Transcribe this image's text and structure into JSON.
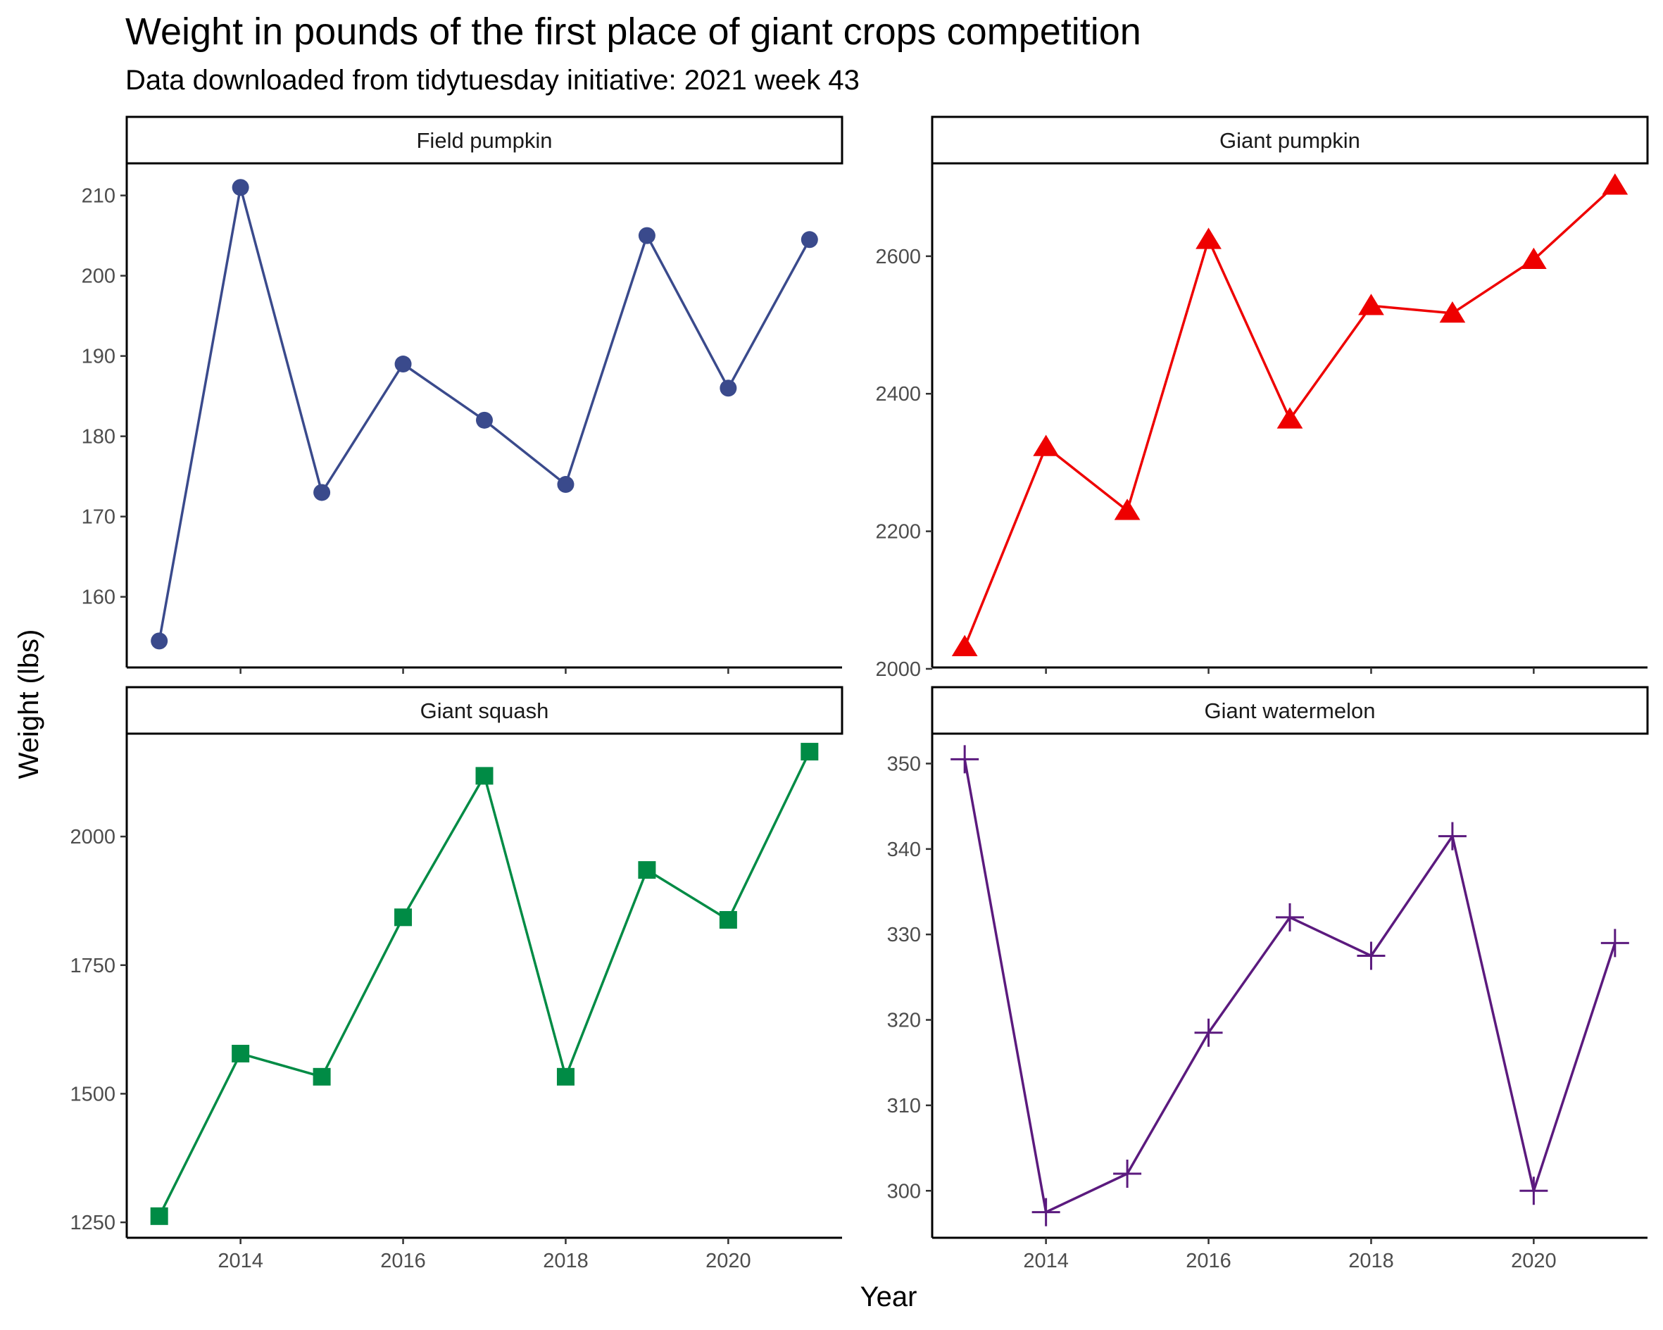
{
  "chart_data": {
    "type": "line",
    "title": "Weight in pounds of the first place of giant crops competition",
    "subtitle": "Data downloaded from tidytuesday initiative: 2021 week 43",
    "xlabel": "Year",
    "ylabel": "Weight (lbs)",
    "x_ticks": [
      "2014",
      "2016",
      "2018",
      "2020"
    ],
    "grid": false,
    "legend": "none",
    "x": [
      2013,
      2014,
      2015,
      2016,
      2017,
      2018,
      2019,
      2020,
      2021
    ],
    "xlim": [
      2012.6,
      2021.4
    ],
    "panels": [
      {
        "name": "Field pumpkin",
        "color": "#3a4a8c",
        "marker": "circle",
        "ylim": [
          151.2,
          214.0
        ],
        "y_ticks": [
          "160",
          "170",
          "180",
          "190",
          "200",
          "210"
        ],
        "values": [
          154.5,
          211.0,
          173.0,
          189.0,
          182.0,
          174.0,
          205.0,
          186.0,
          204.5
        ]
      },
      {
        "name": "Giant pumpkin",
        "color": "#ee0000",
        "marker": "triangle",
        "ylim": [
          2002,
          2735
        ],
        "y_ticks": [
          "2000",
          "2200",
          "2400",
          "2600"
        ],
        "values": [
          2032,
          2323,
          2230,
          2624,
          2363,
          2528,
          2517,
          2595,
          2703
        ]
      },
      {
        "name": "Giant squash",
        "color": "#008b45",
        "marker": "square",
        "ylim": [
          1220,
          2200
        ],
        "y_ticks": [
          "1250",
          "1500",
          "1750",
          "2000"
        ],
        "values": [
          1262,
          1578,
          1533,
          1843,
          2118,
          1533,
          1935,
          1838,
          2165
        ]
      },
      {
        "name": "Giant watermelon",
        "color": "#5b1a7e",
        "marker": "plus",
        "ylim": [
          294.5,
          353.5
        ],
        "y_ticks": [
          "300",
          "310",
          "320",
          "330",
          "340",
          "350"
        ],
        "values": [
          350.5,
          297.5,
          302.0,
          318.5,
          332.0,
          327.5,
          341.5,
          300.0,
          329.0
        ]
      }
    ]
  }
}
